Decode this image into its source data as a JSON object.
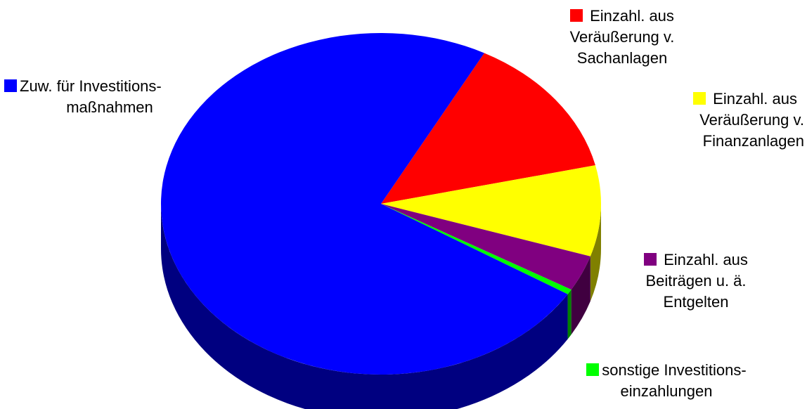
{
  "chart_data": {
    "type": "pie",
    "title": "",
    "slices": [
      {
        "name": "Einzahl. aus Veräußerung v. Sachanlagen",
        "lines": [
          "Einzahl. aus",
          "Veräußerung v.",
          "Sachanlagen"
        ],
        "value": 13.6,
        "color": "#ff0000"
      },
      {
        "name": "Einzahl. aus Veräußerung v. Finanzanlagen",
        "lines": [
          "Einzahl. aus",
          "Veräußerung v.",
          "Finanzanlagen"
        ],
        "value": 8.6,
        "color": "#ffff00"
      },
      {
        "name": "Einzahl. aus Beiträgen u. ä. Entgelten",
        "lines": [
          "Einzahl. aus",
          "Beiträgen u. ä.",
          "Entgelten"
        ],
        "value": 3.4,
        "color": "#800080"
      },
      {
        "name": "sonstige Investitionseinzahlungen",
        "lines": [
          "sonstige Investitions-",
          "einzahlungen"
        ],
        "value": 0.5,
        "color": "#00ff00"
      },
      {
        "name": "Zuw. für Investitionsmaßnahmen",
        "lines": [
          "Zuw. für Investitions-",
          "maßnahmen"
        ],
        "value": 73.9,
        "color": "#0000ff"
      }
    ],
    "legend_placement": "around"
  }
}
